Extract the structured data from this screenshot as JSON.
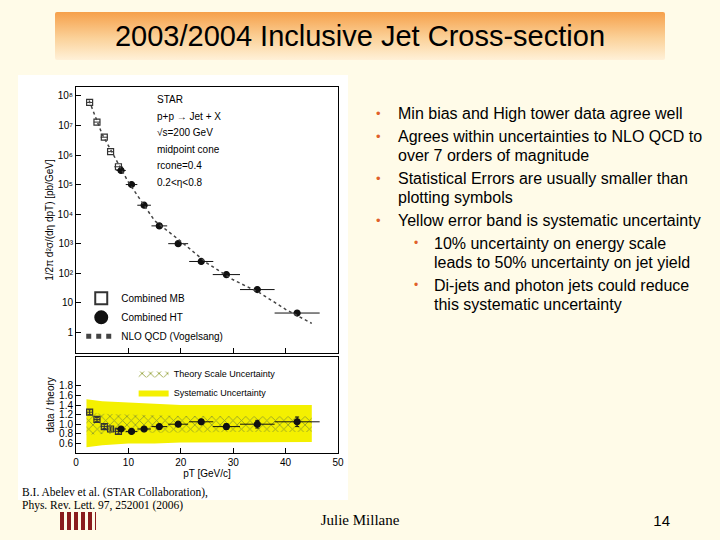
{
  "slide": {
    "title": "2003/2004 Inclusive Jet Cross-section",
    "bullets": [
      {
        "text": "Min bias and High tower data agree well",
        "sub": []
      },
      {
        "text": "Agrees within uncertainties to NLO QCD to over 7 orders of magnitude",
        "sub": []
      },
      {
        "text": "Statistical Errors are usually smaller than plotting symbols",
        "sub": []
      },
      {
        "text": "Yellow error band is systematic uncertainty",
        "sub": [
          "10% uncertainty on energy scale leads to 50% uncertainty on jet yield",
          "Di-jets and photon jets could reduce this systematic uncertainty"
        ]
      }
    ],
    "citation": [
      "B.I. Abelev et al. (STAR Collaboration),",
      "Phys. Rev. Lett. 97, 252001 (2006)"
    ],
    "footer": "Julie Millane",
    "page": "14"
  },
  "chart_data": [
    {
      "type": "scatter",
      "ylabel": "1/2π d²σ/(dη dpT) [pb/GeV]",
      "log": "y",
      "xlim": [
        0,
        50
      ],
      "xticks": [
        0,
        10,
        20,
        30,
        40,
        50
      ],
      "ylim": [
        0.2,
        200000000
      ],
      "yticks": [
        1,
        10,
        {
          "value": 100,
          "label": "10²"
        },
        {
          "value": 1000,
          "label": "10³"
        },
        {
          "value": 10000,
          "label": "10⁴"
        },
        {
          "value": 100000,
          "label": "10⁵"
        },
        {
          "value": 1000000,
          "label": "10⁶"
        },
        {
          "value": 10000000,
          "label": "10⁷"
        },
        {
          "value": 100000000,
          "label": "10⁸"
        }
      ],
      "tick_labels": "y",
      "grid": false,
      "legend": "lower left",
      "annotations": [
        "STAR",
        "p+p → Jet + X",
        "√s=200 GeV",
        "midpoint cone",
        "rcone=0.4",
        "0.2<η<0.8"
      ],
      "series": [
        {
          "name": "Combined MB",
          "marker": "square-open",
          "color": "#333333",
          "x": [
            2.6,
            4.0,
            5.4,
            6.6,
            8.1
          ],
          "values": [
            60000000,
            13000000,
            4000000,
            1300000,
            400000
          ],
          "xerr": [
            0.5,
            0.6,
            0.7,
            0.6,
            0.8
          ]
        },
        {
          "name": "Combined HT",
          "marker": "circle",
          "color": "#111111",
          "x": [
            8.6,
            10.6,
            13.0,
            15.9,
            19.5,
            23.9,
            28.7,
            34.6,
            42.2
          ],
          "values": [
            300000,
            100000,
            20000,
            4000,
            1000,
            250,
            90,
            28,
            4.5
          ],
          "xerr": [
            0.9,
            1.1,
            1.3,
            1.5,
            1.9,
            2.3,
            2.6,
            3.3,
            4.3
          ]
        },
        {
          "name": "NLO QCD (Vogelsang)",
          "type": "line",
          "line_style": "dot",
          "color": "#444444",
          "x": [
            2.5,
            5,
            10,
            15,
            20,
            25,
            30,
            35,
            40,
            45
          ],
          "values": [
            70000000,
            5000000,
            120000,
            6000,
            1200,
            220,
            60,
            22,
            6,
            2
          ]
        }
      ]
    },
    {
      "type": "scatter",
      "xlabel": "pT [GeV/c]",
      "ylabel": "data / theory",
      "xlim": [
        0,
        50
      ],
      "xticks": [
        0,
        10,
        20,
        30,
        40,
        50
      ],
      "ylim": [
        0.4,
        2.4
      ],
      "yticks": [
        0.6,
        0.8,
        {
          "value": 1,
          "label": "1.0"
        },
        1.2,
        1.4,
        1.6,
        1.8
      ],
      "grid": false,
      "legend": "upper center",
      "series": [
        {
          "name": "Systematic Uncertainty",
          "type": "band",
          "color": "#f4f000",
          "x": [
            2,
            5,
            10,
            15,
            20,
            25,
            30,
            35,
            40,
            45
          ],
          "lower": [
            0.52,
            0.56,
            0.6,
            0.6,
            0.62,
            0.62,
            0.63,
            0.63,
            0.63,
            0.63
          ],
          "upper": [
            1.52,
            1.48,
            1.45,
            1.42,
            1.4,
            1.4,
            1.4,
            1.4,
            1.4,
            1.4
          ]
        },
        {
          "name": "Theory Scale Uncertainty",
          "type": "band",
          "line_style": "hatched",
          "color": "#8c9a2a",
          "x": [
            2,
            5,
            10,
            15,
            20,
            25,
            30,
            35,
            40,
            45
          ],
          "lower": [
            0.78,
            0.8,
            0.82,
            0.82,
            0.83,
            0.83,
            0.84,
            0.84,
            0.84,
            0.84
          ],
          "upper": [
            1.25,
            1.22,
            1.2,
            1.18,
            1.17,
            1.17,
            1.16,
            1.16,
            1.16,
            1.16
          ]
        },
        {
          "marker": "square-open",
          "color": "#333333",
          "x": [
            2.6,
            4.0,
            5.4,
            6.6,
            8.1
          ],
          "values": [
            1.25,
            1.1,
            0.95,
            0.9,
            0.85
          ],
          "xerr": [
            0.5,
            0.6,
            0.7,
            0.6,
            0.8
          ],
          "yerr": [
            0.05,
            0.04,
            0.04,
            0.04,
            0.05
          ]
        },
        {
          "marker": "circle",
          "color": "#111111",
          "x": [
            8.6,
            10.6,
            13.0,
            15.9,
            19.5,
            23.9,
            28.7,
            34.6,
            42.2
          ],
          "values": [
            0.9,
            0.85,
            0.9,
            0.95,
            1.0,
            1.05,
            0.95,
            1.0,
            1.05
          ],
          "xerr": [
            0.9,
            1.1,
            1.3,
            1.5,
            1.9,
            2.3,
            2.6,
            3.3,
            4.3
          ],
          "yerr": [
            0.03,
            0.03,
            0.03,
            0.04,
            0.04,
            0.05,
            0.06,
            0.08,
            0.1
          ]
        }
      ]
    }
  ]
}
